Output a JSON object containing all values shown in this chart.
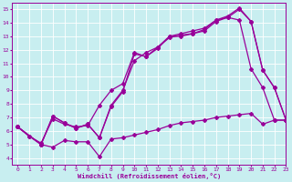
{
  "title": "",
  "xlabel": "Windchill (Refroidissement éolien,°C)",
  "ylabel": "",
  "background_color": "#c8eef0",
  "line_color": "#990099",
  "grid_color": "#ffffff",
  "xlim": [
    -0.5,
    23
  ],
  "ylim": [
    3.5,
    15.5
  ],
  "xticks": [
    0,
    1,
    2,
    3,
    4,
    5,
    6,
    7,
    8,
    9,
    10,
    11,
    12,
    13,
    14,
    15,
    16,
    17,
    18,
    19,
    20,
    21,
    22,
    23
  ],
  "yticks": [
    4,
    5,
    6,
    7,
    8,
    9,
    10,
    11,
    12,
    13,
    14,
    15
  ],
  "line1_x": [
    0,
    1,
    2,
    3,
    4,
    5,
    6,
    7,
    8,
    9,
    10,
    11,
    12,
    13,
    14,
    15,
    16,
    17,
    18,
    19,
    20,
    21,
    22,
    23
  ],
  "line1_y": [
    6.3,
    5.6,
    5.0,
    4.8,
    5.3,
    5.2,
    5.2,
    4.1,
    5.4,
    5.5,
    5.7,
    5.9,
    6.1,
    6.4,
    6.6,
    6.7,
    6.8,
    7.0,
    7.1,
    7.2,
    7.3,
    6.5,
    6.8,
    6.8
  ],
  "line2_x": [
    0,
    1,
    2,
    3,
    4,
    5,
    6,
    7,
    8,
    9,
    10,
    11,
    12,
    13,
    14,
    15,
    16,
    17,
    18,
    19,
    20,
    21,
    22,
    23
  ],
  "line2_y": [
    6.3,
    5.6,
    5.1,
    6.9,
    6.5,
    6.3,
    6.4,
    7.9,
    9.0,
    9.5,
    11.8,
    11.5,
    12.2,
    12.9,
    13.1,
    13.2,
    13.4,
    14.1,
    14.4,
    14.2,
    10.6,
    9.2,
    6.8,
    6.8
  ],
  "line3_x": [
    0,
    2,
    3,
    4,
    5,
    6,
    7,
    8,
    9,
    10,
    11,
    12,
    13,
    14,
    15,
    16,
    17,
    18,
    19,
    20,
    21,
    22,
    23
  ],
  "line3_y": [
    6.3,
    5.0,
    7.1,
    6.6,
    6.2,
    6.5,
    5.5,
    7.9,
    9.0,
    11.2,
    11.8,
    12.2,
    13.0,
    13.2,
    13.4,
    13.6,
    14.2,
    14.5,
    15.1,
    14.1,
    10.5,
    9.2,
    6.8
  ],
  "line4_x": [
    0,
    2,
    3,
    4,
    5,
    6,
    7,
    8,
    9,
    10,
    11,
    12,
    13,
    14,
    15,
    16,
    17,
    18,
    19,
    20,
    21,
    22,
    23
  ],
  "line4_y": [
    6.3,
    5.0,
    7.1,
    6.6,
    6.2,
    6.5,
    5.5,
    7.8,
    8.9,
    11.7,
    11.5,
    12.1,
    13.0,
    13.0,
    13.2,
    13.5,
    14.2,
    14.4,
    15.0,
    14.1,
    10.5,
    9.2,
    6.8
  ]
}
